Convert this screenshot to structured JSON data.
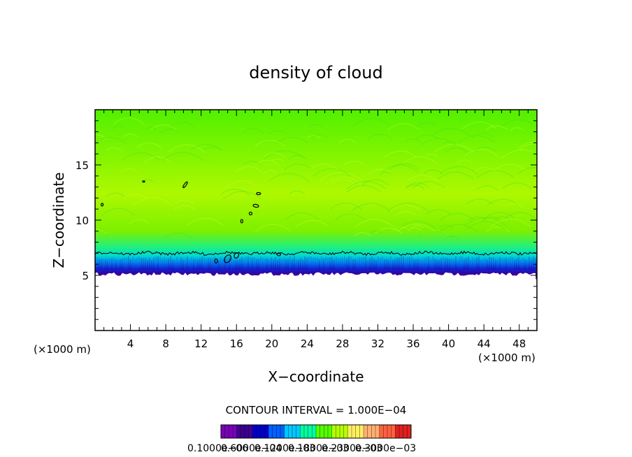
{
  "chart_data": {
    "type": "heatmap",
    "title": "density of cloud",
    "xlabel": "X−coordinate",
    "ylabel": "Z−coordinate",
    "x_unit_left": "(×1000 m)",
    "x_unit_right": "(×1000 m)",
    "xlim": [
      0,
      50
    ],
    "ylim": [
      0,
      20
    ],
    "x_ticks": [
      4,
      8,
      12,
      16,
      20,
      24,
      28,
      32,
      36,
      40,
      44,
      48
    ],
    "y_ticks": [
      5,
      10,
      15
    ],
    "contour_interval_label": "CONTOUR INTERVAL = 1.000E−04",
    "cloud_base_z": 5.4,
    "cloud_dense_top_z": 7.0,
    "colorbar_labels": [
      "0.1000e−06",
      "0.6000e−04",
      "0.1200e−03",
      "0.1800e−03",
      "0.2300e−03",
      "0.3000e−03"
    ],
    "colormap": [
      "#7a00b8",
      "#3d0090",
      "#0000c8",
      "#0060ff",
      "#00c8ff",
      "#00ffa0",
      "#55ff00",
      "#b4ff00",
      "#fff060",
      "#ffb070",
      "#ff6040",
      "#e02020"
    ],
    "grid": false
  }
}
